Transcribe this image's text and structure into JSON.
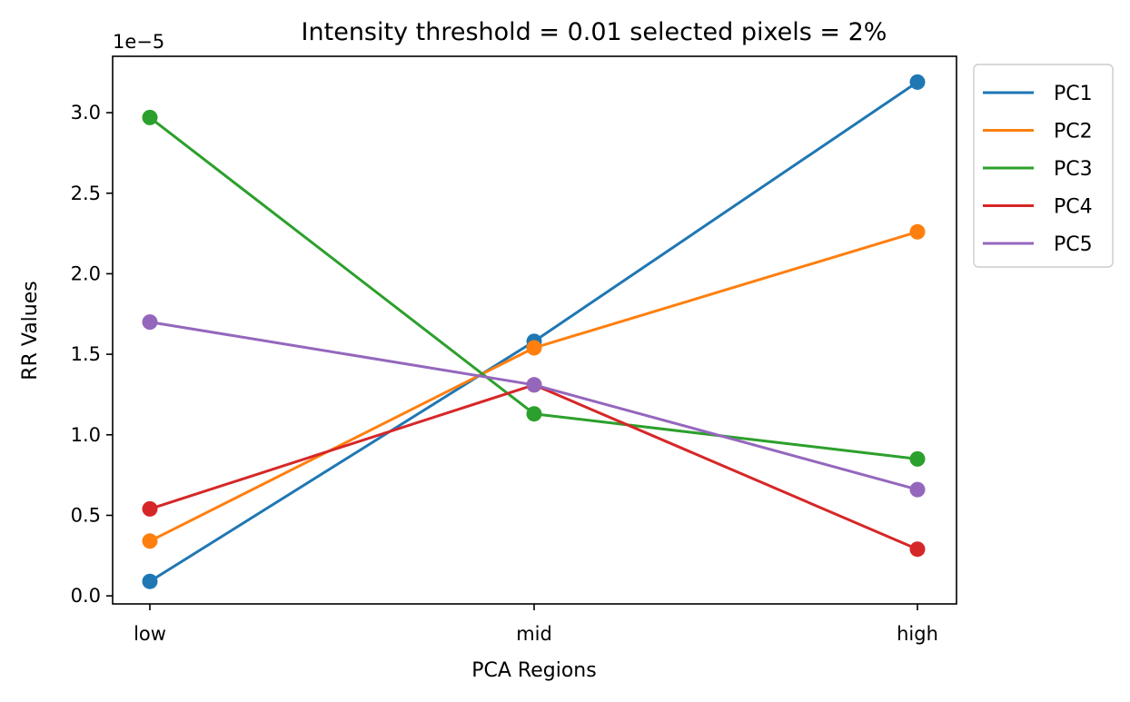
{
  "chart_data": {
    "type": "line",
    "title": "Intensity threshold = 0.01 selected pixels = 2%",
    "xlabel": "PCA Regions",
    "ylabel": "RR Values",
    "y_offset_text": "1e−5",
    "categories": [
      "low",
      "mid",
      "high"
    ],
    "ylim": [
      -0.05,
      3.35
    ],
    "yticks": [
      0.0,
      0.5,
      1.0,
      1.5,
      2.0,
      2.5,
      3.0
    ],
    "ytick_labels": [
      "0.0",
      "0.5",
      "1.0",
      "1.5",
      "2.0",
      "2.5",
      "3.0"
    ],
    "grid": false,
    "legend_position": "outside-right-top",
    "series": [
      {
        "name": "PC1",
        "color": "#1f77b4",
        "values": [
          0.09,
          1.58,
          3.19
        ]
      },
      {
        "name": "PC2",
        "color": "#ff7f0e",
        "values": [
          0.34,
          1.54,
          2.26
        ]
      },
      {
        "name": "PC3",
        "color": "#2ca02c",
        "values": [
          2.97,
          1.13,
          0.85
        ]
      },
      {
        "name": "PC4",
        "color": "#d62728",
        "values": [
          0.54,
          1.31,
          0.29
        ]
      },
      {
        "name": "PC5",
        "color": "#9467bd",
        "values": [
          1.7,
          1.31,
          0.66
        ]
      }
    ]
  }
}
